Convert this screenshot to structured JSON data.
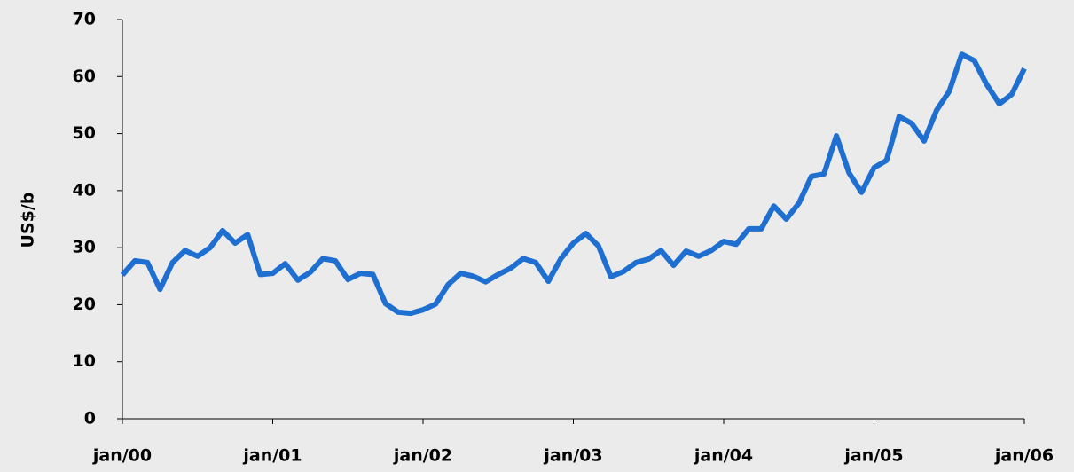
{
  "chart_data": {
    "type": "line",
    "y_label": "US$/b",
    "categories": [
      "jan/00",
      null,
      null,
      null,
      null,
      null,
      null,
      null,
      null,
      null,
      null,
      null,
      "jan/01",
      null,
      null,
      null,
      null,
      null,
      null,
      null,
      null,
      null,
      null,
      null,
      "jan/02",
      null,
      null,
      null,
      null,
      null,
      null,
      null,
      null,
      null,
      null,
      null,
      "jan/03",
      null,
      null,
      null,
      null,
      null,
      null,
      null,
      null,
      null,
      null,
      null,
      "jan/04",
      null,
      null,
      null,
      null,
      null,
      null,
      null,
      null,
      null,
      null,
      null,
      "jan/05",
      null,
      null,
      null,
      null,
      null,
      null,
      null,
      null,
      null,
      null,
      null,
      "jan/06"
    ],
    "values": [
      25.2,
      27.7,
      27.4,
      22.7,
      27.4,
      29.5,
      28.5,
      30.0,
      33.0,
      30.8,
      32.3,
      25.3,
      25.5,
      27.2,
      24.3,
      25.7,
      28.1,
      27.7,
      24.4,
      25.5,
      25.3,
      20.2,
      18.7,
      18.5,
      19.1,
      20.1,
      23.5,
      25.5,
      25.0,
      24.0,
      25.3,
      26.4,
      28.1,
      27.4,
      24.1,
      28.1,
      30.8,
      32.5,
      30.3,
      24.9,
      25.8,
      27.4,
      28.0,
      29.5,
      26.9,
      29.4,
      28.5,
      29.5,
      31.1,
      30.6,
      33.3,
      33.3,
      37.3,
      35.0,
      37.8,
      42.5,
      42.9,
      49.6,
      43.1,
      39.7,
      44.0,
      45.3,
      53.0,
      51.8,
      48.7,
      54.1,
      57.4,
      63.9,
      62.8,
      58.6,
      55.2,
      56.9,
      61.4
    ],
    "color": "#1f6fd1",
    "ylim": [
      0,
      70
    ],
    "yticks": [
      0,
      10,
      20,
      30,
      40,
      50,
      60,
      70
    ]
  }
}
